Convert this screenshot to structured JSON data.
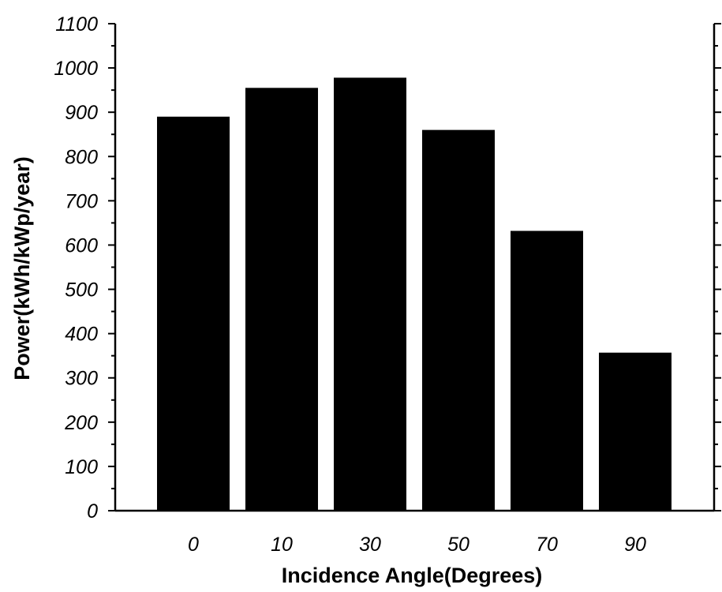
{
  "chart_data": {
    "type": "bar",
    "title": "",
    "xlabel": "Incidence Angle(Degrees)",
    "ylabel": "Power(kWh/kWp/year)",
    "categories": [
      "0",
      "10",
      "30",
      "50",
      "70",
      "90"
    ],
    "values": [
      890,
      955,
      978,
      860,
      632,
      357
    ],
    "ylim": [
      0,
      1100
    ],
    "yticks": [
      0,
      100,
      200,
      300,
      400,
      500,
      600,
      700,
      800,
      900,
      1000,
      1100
    ],
    "ytick_labels": [
      "0",
      "100",
      "200",
      "300",
      "400",
      "500",
      "600",
      "700",
      "800",
      "900",
      "1000",
      "1100"
    ],
    "grid": false,
    "legend": "none",
    "bar_color": "#000000"
  }
}
